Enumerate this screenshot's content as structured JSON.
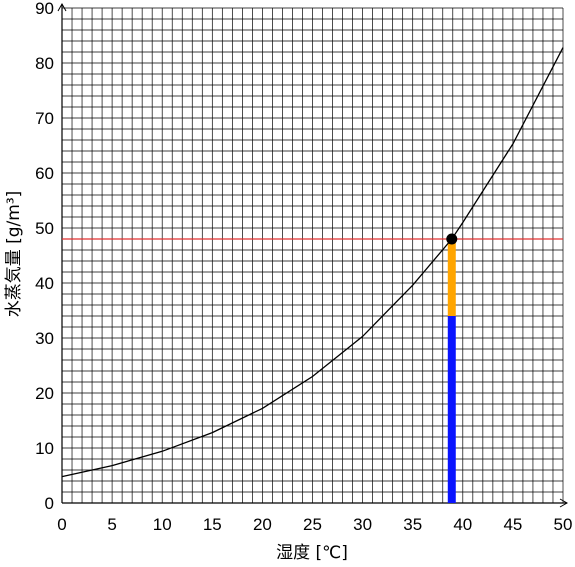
{
  "chart_data": {
    "type": "line",
    "xlabel": "湿度 [℃]",
    "ylabel": "水蒸気量 [g/m³]",
    "xlim": [
      0,
      50
    ],
    "ylim": [
      0,
      90
    ],
    "x_ticks": [
      0,
      5,
      10,
      15,
      20,
      25,
      30,
      35,
      40,
      45,
      50
    ],
    "y_ticks": [
      0,
      10,
      20,
      30,
      40,
      50,
      60,
      70,
      80,
      90
    ],
    "minor_grid_step": {
      "x": 1,
      "y": 2
    },
    "grid": true,
    "series": [
      {
        "x": [
          0,
          5,
          10,
          15,
          20,
          25,
          30,
          35,
          38.9,
          40,
          45,
          50
        ],
        "y": [
          4.8,
          6.8,
          9.4,
          12.8,
          17.2,
          23.0,
          30.3,
          39.6,
          48.0,
          51.0,
          65.3,
          82.8
        ],
        "color": "#000000"
      }
    ],
    "reference_line": {
      "y": 48,
      "color": "#e03030"
    },
    "marker_point": {
      "x": 38.9,
      "y": 48,
      "color": "#000000"
    },
    "stacked_bar": {
      "x": 38.9,
      "segments": [
        {
          "from": 0,
          "to": 34,
          "color": "#0a14ff"
        },
        {
          "from": 34,
          "to": 48,
          "color": "#ffa500"
        }
      ]
    }
  }
}
